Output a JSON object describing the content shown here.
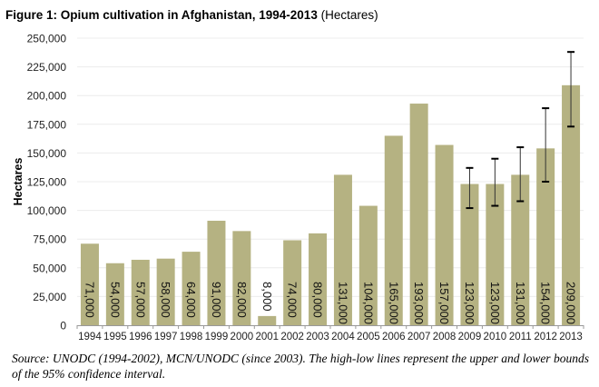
{
  "chart_data": {
    "type": "bar",
    "title": "Figure 1: Opium cultivation in Afghanistan, 1994-2013",
    "title_unit": "(Hectares)",
    "xlabel": "",
    "ylabel": "Hectares",
    "ylim": [
      0,
      250000
    ],
    "yticks": [
      0,
      25000,
      50000,
      75000,
      100000,
      125000,
      150000,
      175000,
      200000,
      225000,
      250000
    ],
    "ytick_labels": [
      "0",
      "25,000",
      "50,000",
      "75,000",
      "100,000",
      "125,000",
      "150,000",
      "175,000",
      "200,000",
      "225,000",
      "250,000"
    ],
    "grid": true,
    "categories": [
      "1994",
      "1995",
      "1996",
      "1997",
      "1998",
      "1999",
      "2000",
      "2001",
      "2002",
      "2003",
      "2004",
      "2005",
      "2006",
      "2007",
      "2008",
      "2009",
      "2010",
      "2011",
      "2012",
      "2013"
    ],
    "values": [
      71000,
      54000,
      57000,
      58000,
      64000,
      91000,
      82000,
      8000,
      74000,
      80000,
      131000,
      104000,
      165000,
      193000,
      157000,
      123000,
      123000,
      131000,
      154000,
      209000
    ],
    "data_labels": [
      "71,000",
      "54,000",
      "57,000",
      "58,000",
      "64,000",
      "91,000",
      "82,000",
      "8,000",
      "74,000",
      "80,000",
      "131,000",
      "104,000",
      "165,000",
      "193,000",
      "157,000",
      "123,000",
      "123,000",
      "131,000",
      "154,000",
      "209,000"
    ],
    "error_bars": [
      {
        "category": "2009",
        "low": 102000,
        "high": 137000
      },
      {
        "category": "2010",
        "low": 104000,
        "high": 145000
      },
      {
        "category": "2011",
        "low": 108000,
        "high": 155000
      },
      {
        "category": "2012",
        "low": 125000,
        "high": 189000
      },
      {
        "category": "2013",
        "low": 173000,
        "high": 238000
      }
    ],
    "bar_color": "#b5b282",
    "source": "Source: UNODC (1994-2002), MCN/UNODC (since 2003). The high-low lines represent the upper and lower bounds of the 95% confidence interval."
  }
}
